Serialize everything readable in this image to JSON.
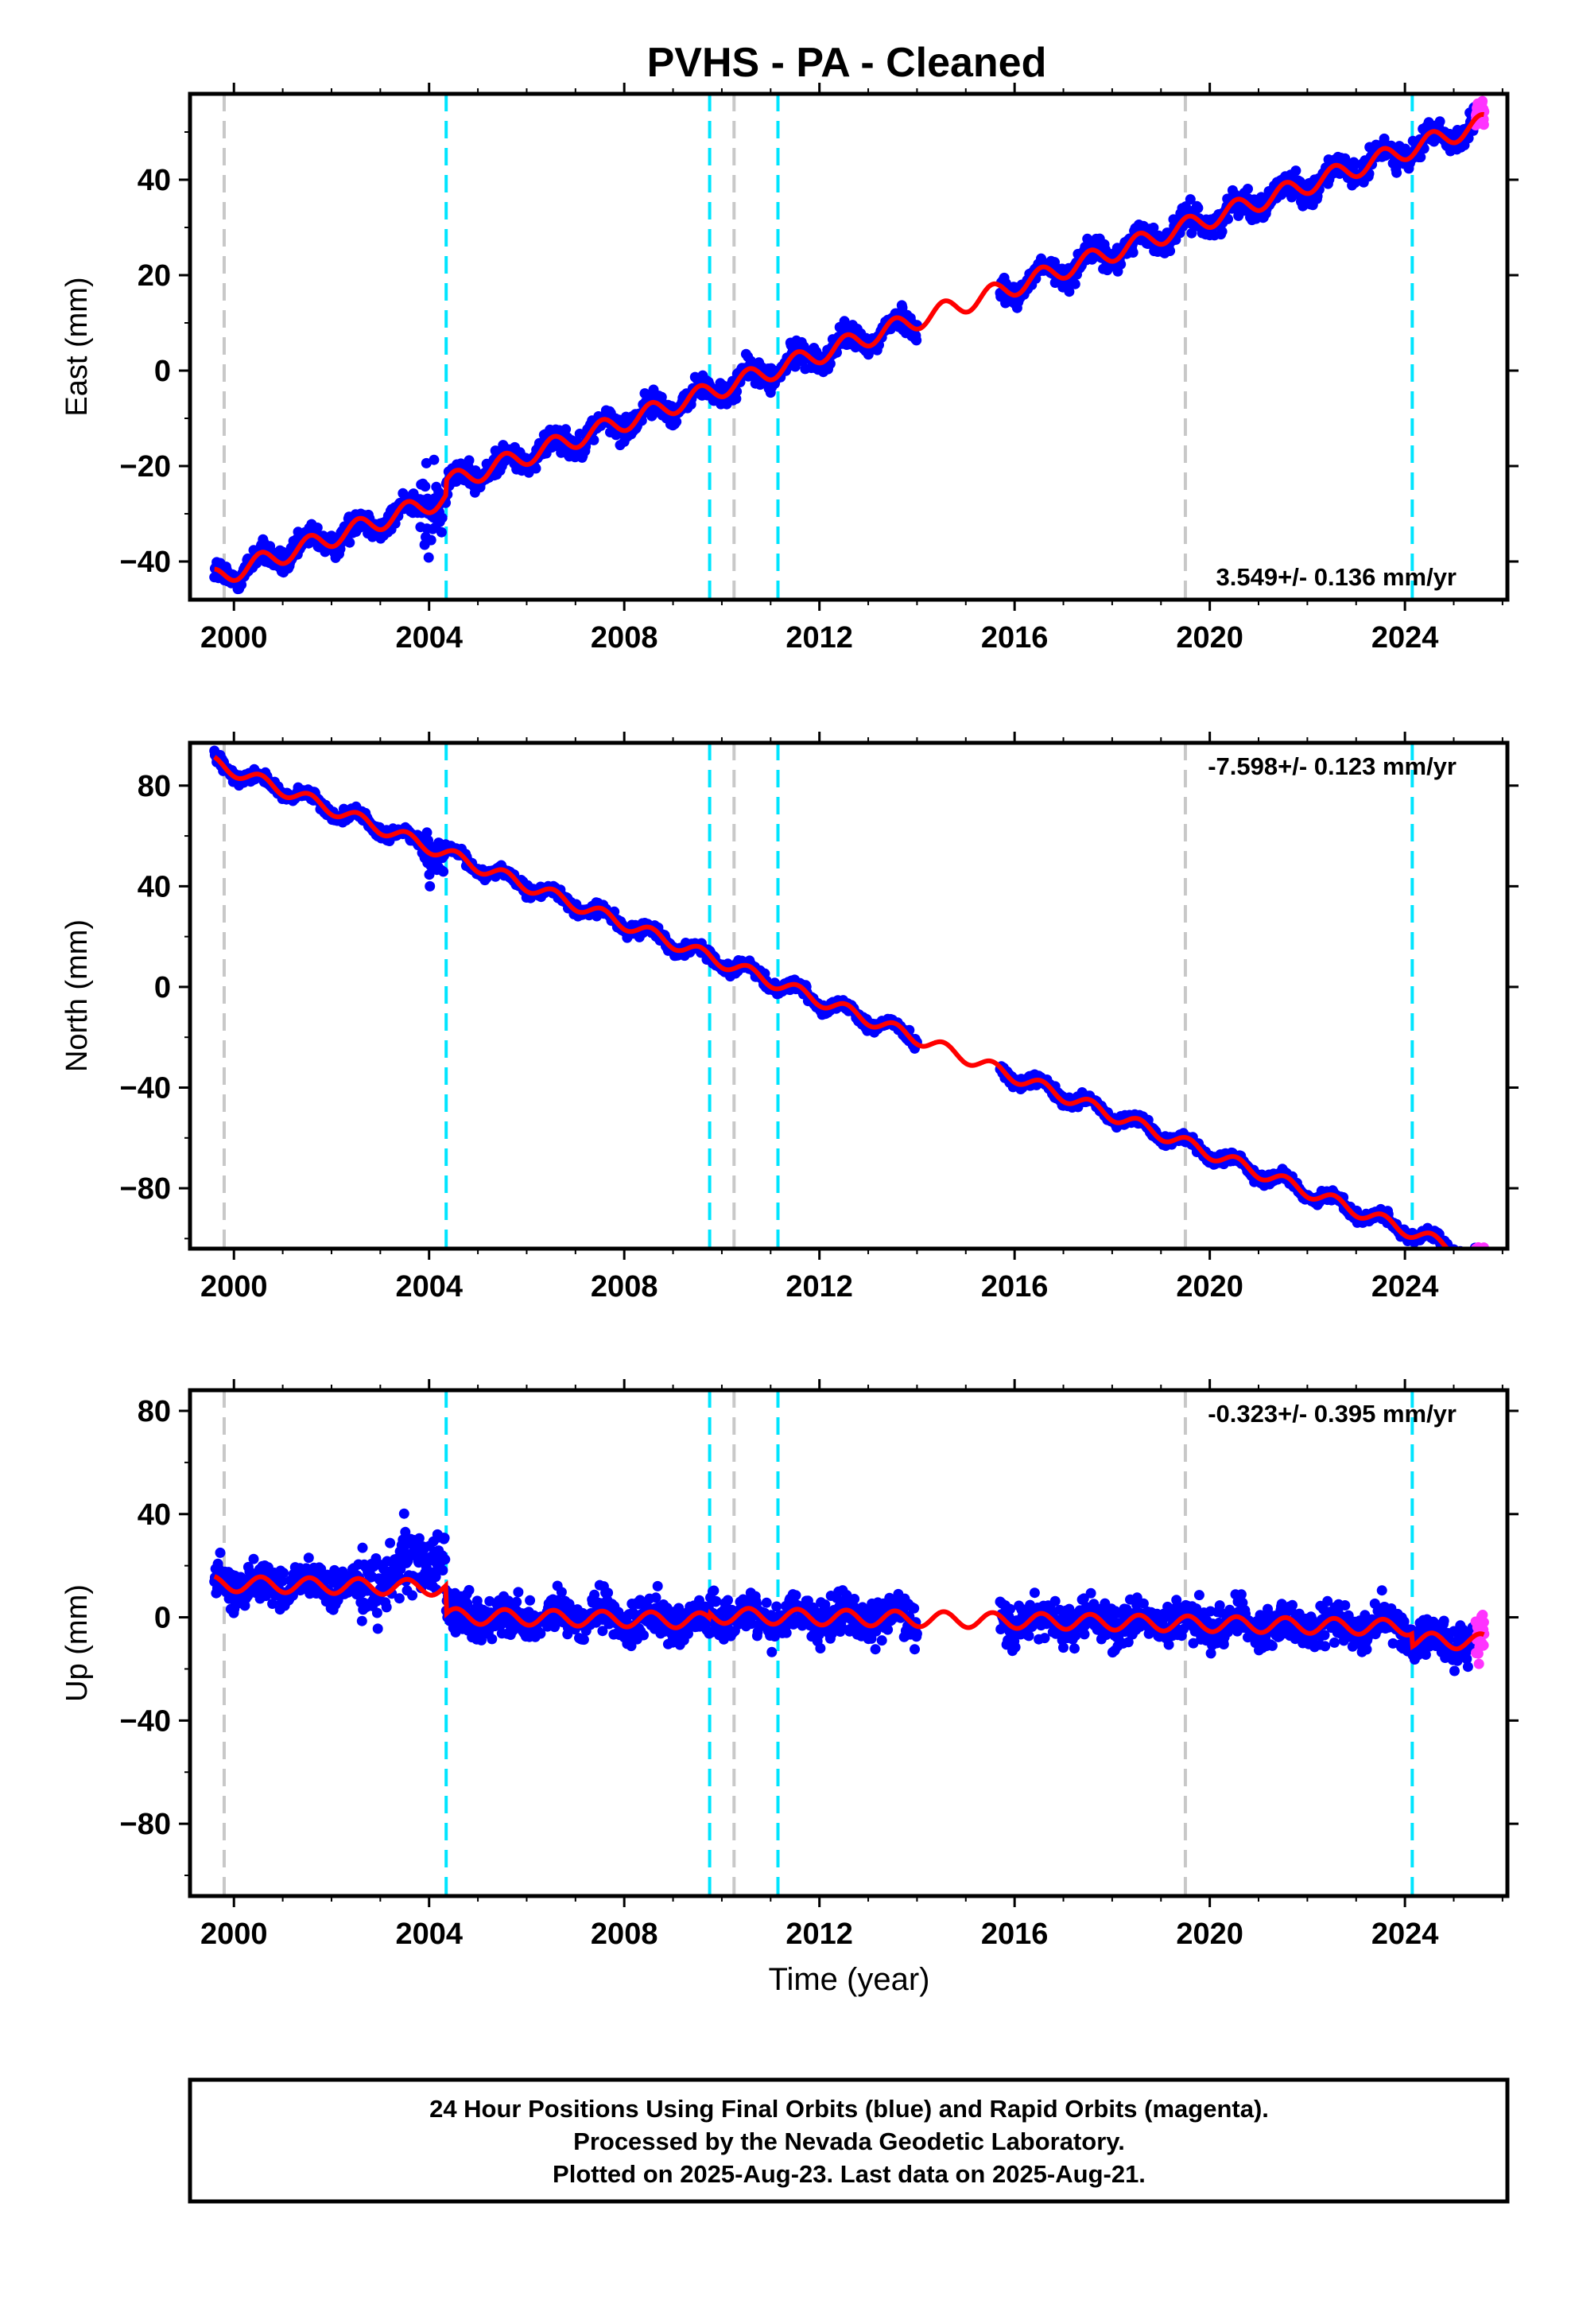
{
  "chart_data": {
    "title": "PVHS  - PA - Cleaned",
    "type": "scatter",
    "xlabel": "Time (year)",
    "x_ticks": [
      "2000",
      "2004",
      "2008",
      "2012",
      "2016",
      "2020",
      "2024"
    ],
    "grid": false,
    "colors": {
      "final": "#0000ff",
      "rapid": "#ff33ff",
      "model": "#ff0000",
      "gap_line": "#c8c8c8",
      "equipment_line": "#00e5ff"
    },
    "gray_events": [
      1999.8,
      2010.25,
      2019.5
    ],
    "cyan_events": [
      2004.35,
      2009.75,
      2011.15,
      2024.15
    ],
    "data_gap": [
      2014.0,
      2015.7
    ],
    "panels": [
      {
        "name": "East",
        "ylabel": "East (mm)",
        "xlim": [
          1999.1,
          2026.1
        ],
        "ylim": [
          -48,
          58
        ],
        "y_ticks": [
          -40,
          -20,
          0,
          20,
          40
        ],
        "rate_label": "3.549+/- 0.136 mm/yr",
        "rate_position": "bottom-right",
        "trend": {
          "t0": 1999.6,
          "y0": -43.5,
          "rate": 3.549,
          "seasonal_amp": 2.0,
          "scatter": 1.8,
          "offsets": [
            {
              "t": 2004.35,
              "dy": 3
            }
          ],
          "spikes": [
            {
              "t0": 2003.8,
              "t1": 2004.3,
              "amp": 12
            }
          ]
        }
      },
      {
        "name": "North",
        "ylabel": "North (mm)",
        "xlim": [
          1999.1,
          2026.1
        ],
        "ylim": [
          -104,
          97
        ],
        "y_ticks": [
          -80,
          -40,
          0,
          40,
          80
        ],
        "rate_label": "-7.598+/- 0.123 mm/yr",
        "rate_position": "top-right",
        "trend": {
          "t0": 1999.6,
          "y0": 89,
          "rate": -7.598,
          "seasonal_amp": 2.5,
          "scatter": 1.6,
          "offsets": [],
          "spikes": [
            {
              "t0": 2003.9,
              "t1": 2004.3,
              "amp": 12
            }
          ]
        }
      },
      {
        "name": "Up",
        "ylabel": "Up (mm)",
        "xlim": [
          1999.1,
          2026.1
        ],
        "ylim": [
          -108,
          88
        ],
        "y_ticks": [
          -80,
          -40,
          0,
          40,
          80
        ],
        "rate_label": "-0.323+/- 0.395 mm/yr",
        "rate_position": "top-right",
        "trend": {
          "t0": 1999.6,
          "y0": 13,
          "rate": -0.323,
          "seasonal_amp": 3.0,
          "scatter": 5.5,
          "offsets": [
            {
              "t": 2004.35,
              "dy": -11
            },
            {
              "t": 2009.75,
              "dy": 2
            },
            {
              "t": 2024.15,
              "dy": -5
            }
          ],
          "spikes": [
            {
              "t0": 2002.5,
              "t1": 2004.35,
              "amp": 14
            }
          ]
        }
      }
    ],
    "footer_lines": [
      "24 Hour Positions Using Final Orbits (blue) and Rapid Orbits (magenta).",
      "Processed by the Nevada Geodetic Laboratory.",
      "Plotted on 2025-Aug-23. Last data on 2025-Aug-21."
    ]
  }
}
